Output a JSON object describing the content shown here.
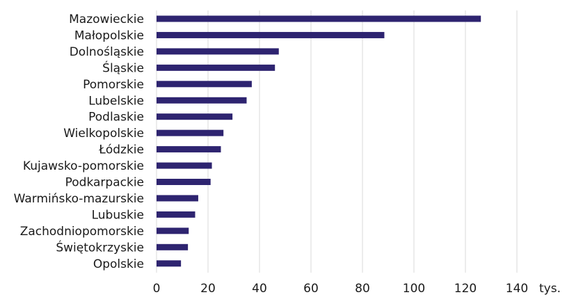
{
  "chart_data": {
    "type": "bar",
    "orientation": "horizontal",
    "categories": [
      "Mazowieckie",
      "Małopolskie",
      "Dolnośląskie",
      "Śląskie",
      "Pomorskie",
      "Lubelskie",
      "Podlaskie",
      "Wielkopolskie",
      "Łódzkie",
      "Kujawsko-pomorskie",
      "Podkarpackie",
      "Warmińsko-mazurskie",
      "Lubuskie",
      "Zachodniopomorskie",
      "Świętokrzyskie",
      "Opolskie"
    ],
    "values": [
      126,
      88.5,
      47.5,
      46,
      37,
      35,
      29.5,
      26,
      25,
      21.5,
      21,
      16.2,
      15,
      12.5,
      12.2,
      9.5
    ],
    "xticks": [
      0,
      20,
      40,
      60,
      80,
      100,
      120,
      140
    ],
    "xlim": [
      0,
      140
    ],
    "unit_label": "tys.",
    "grid": "vertical",
    "bar_color": "#2e2470",
    "grid_color": "#d9d9d9"
  }
}
